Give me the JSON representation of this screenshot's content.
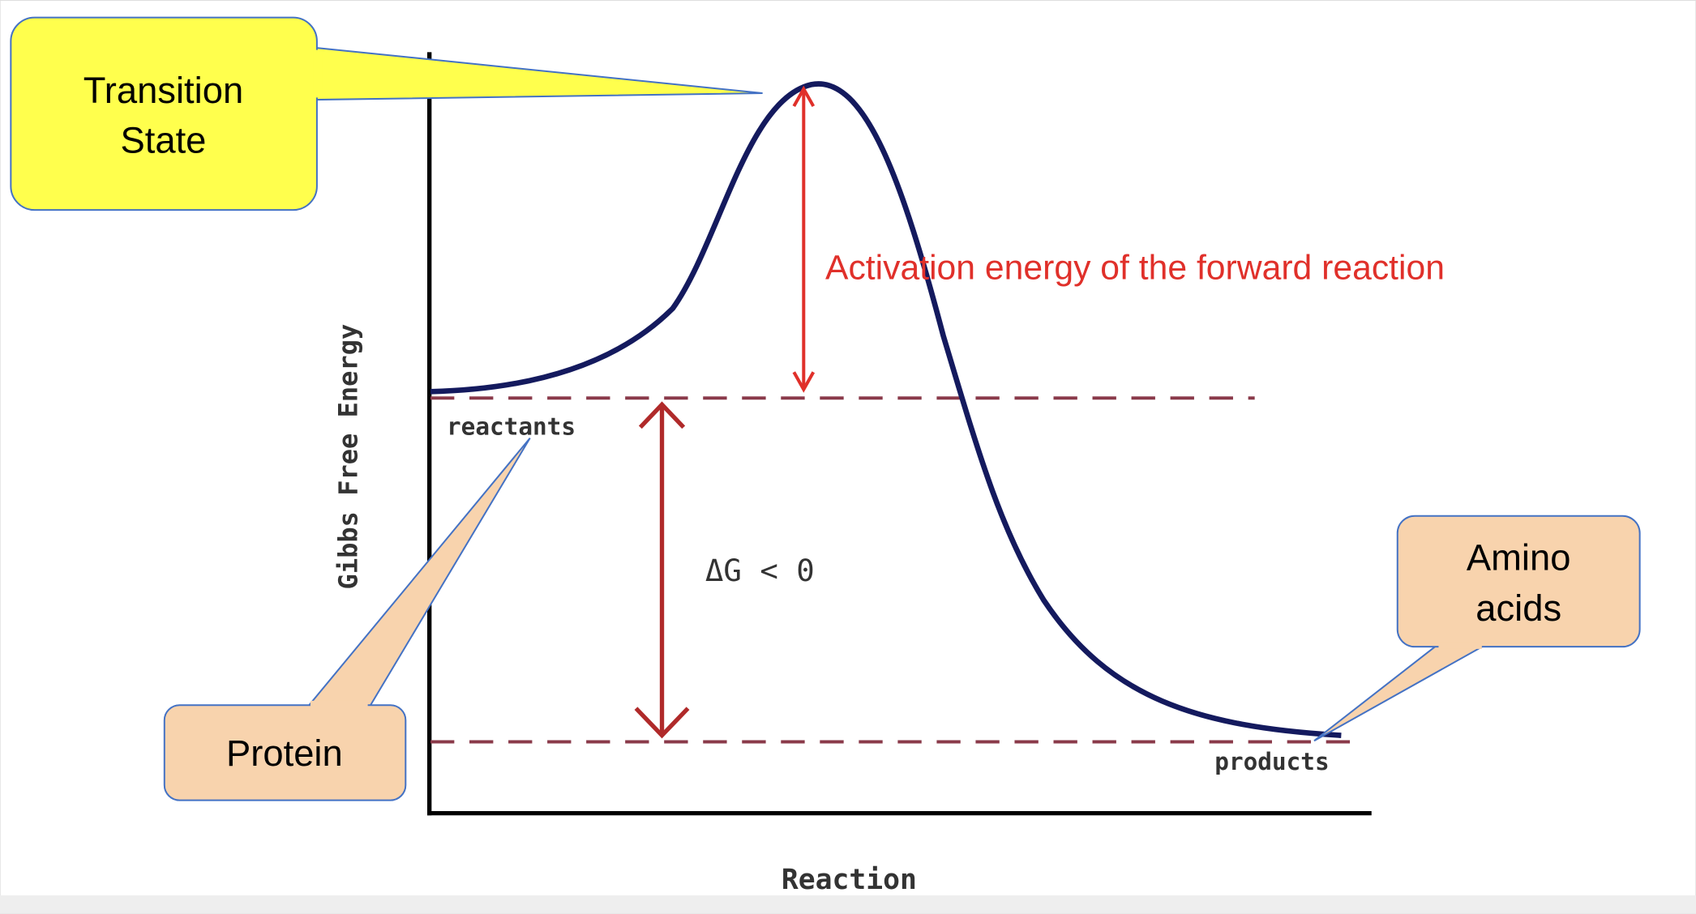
{
  "axes": {
    "y_label": "Gibbs Free Energy",
    "x_label": "Reaction"
  },
  "curve_labels": {
    "reactants": "reactants",
    "products": "products",
    "delta_g": "ΔG < 0",
    "activation": "Activation energy of the forward reaction"
  },
  "callouts": {
    "transition_state": [
      "Transition",
      "State"
    ],
    "protein": [
      "Protein"
    ],
    "amino_acids": [
      "Amino",
      "acids"
    ]
  }
}
